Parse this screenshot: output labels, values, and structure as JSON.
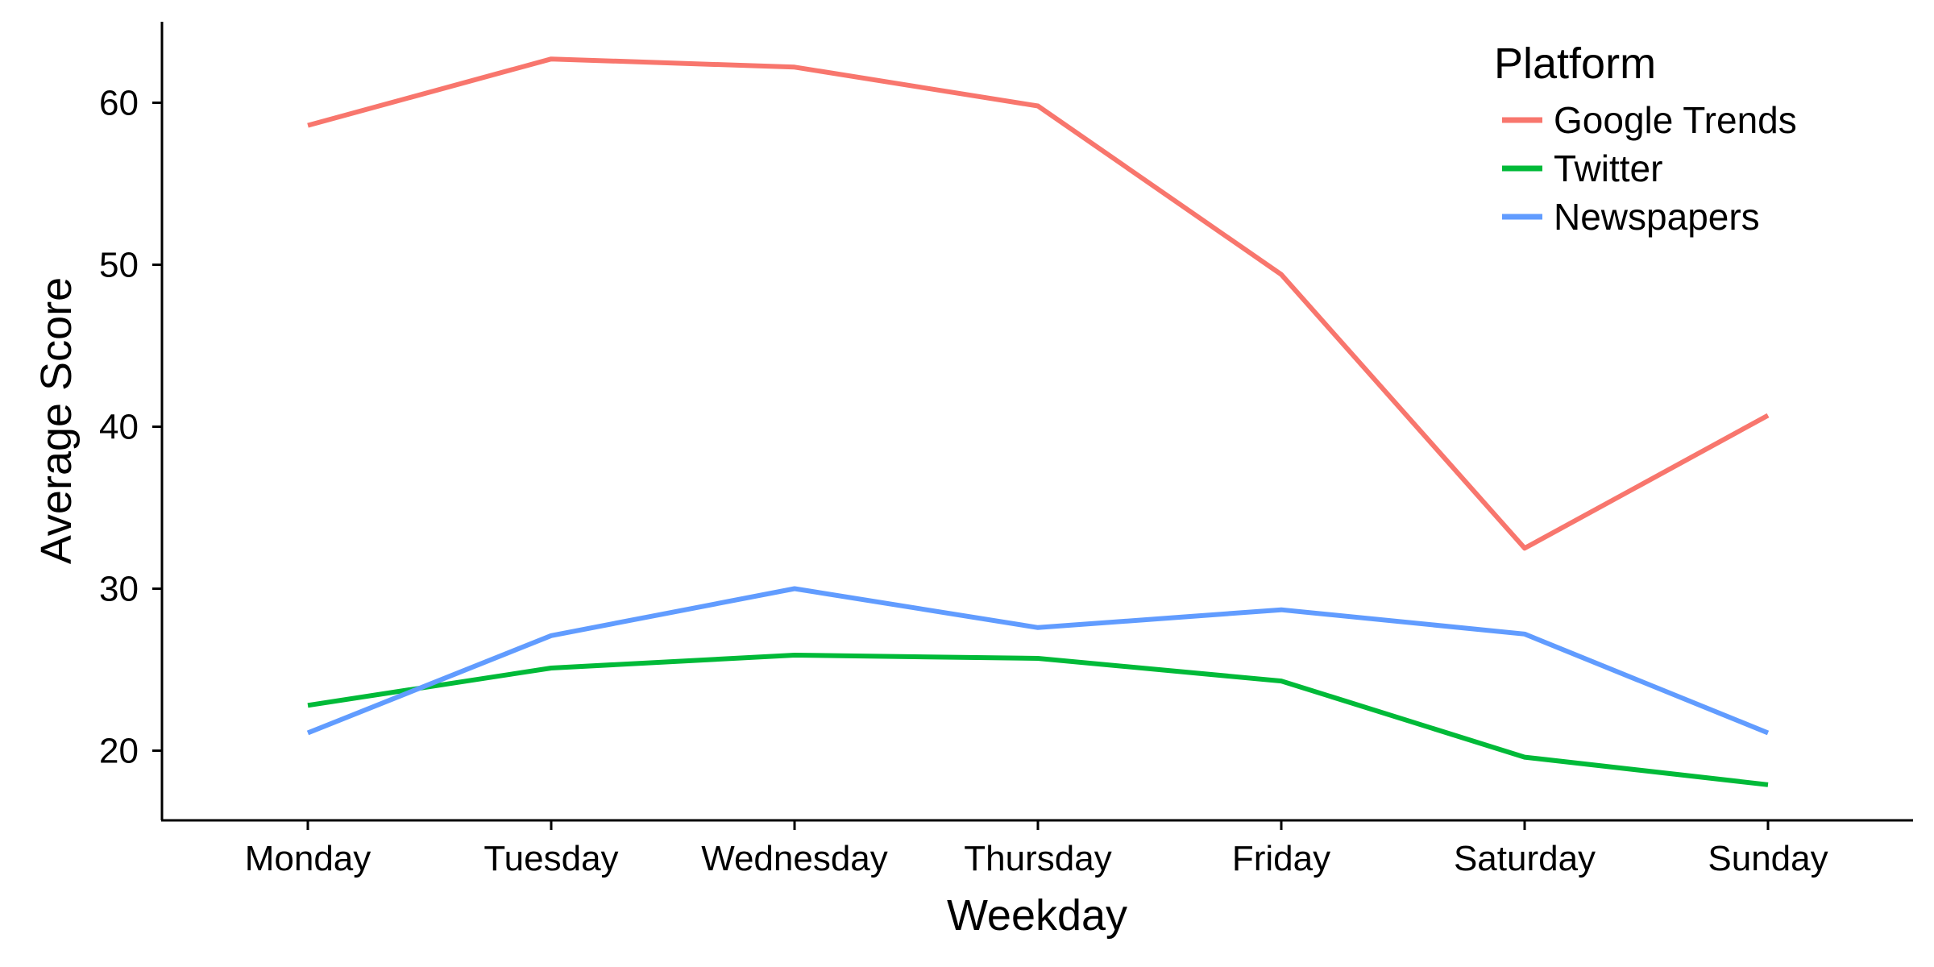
{
  "chart_data": {
    "type": "line",
    "categories": [
      "Monday",
      "Tuesday",
      "Wednesday",
      "Thursday",
      "Friday",
      "Saturday",
      "Sunday"
    ],
    "series": [
      {
        "name": "Google Trends",
        "color": "#F8766D",
        "values": [
          58.6,
          62.7,
          62.2,
          59.8,
          49.4,
          32.5,
          40.7
        ]
      },
      {
        "name": "Twitter",
        "color": "#00BA38",
        "values": [
          22.8,
          25.1,
          25.9,
          25.7,
          24.3,
          19.6,
          17.9
        ]
      },
      {
        "name": "Newspapers",
        "color": "#619CFF",
        "values": [
          21.1,
          27.1,
          30.0,
          27.6,
          28.7,
          27.2,
          21.1
        ]
      }
    ],
    "title": "",
    "xlabel": "Weekday",
    "ylabel": "Average Score",
    "ylim": [
      15.7,
      65.0
    ],
    "yticks": [
      20,
      30,
      40,
      50,
      60
    ],
    "legend_title": "Platform",
    "legend_position": "top-right",
    "grid": false
  }
}
